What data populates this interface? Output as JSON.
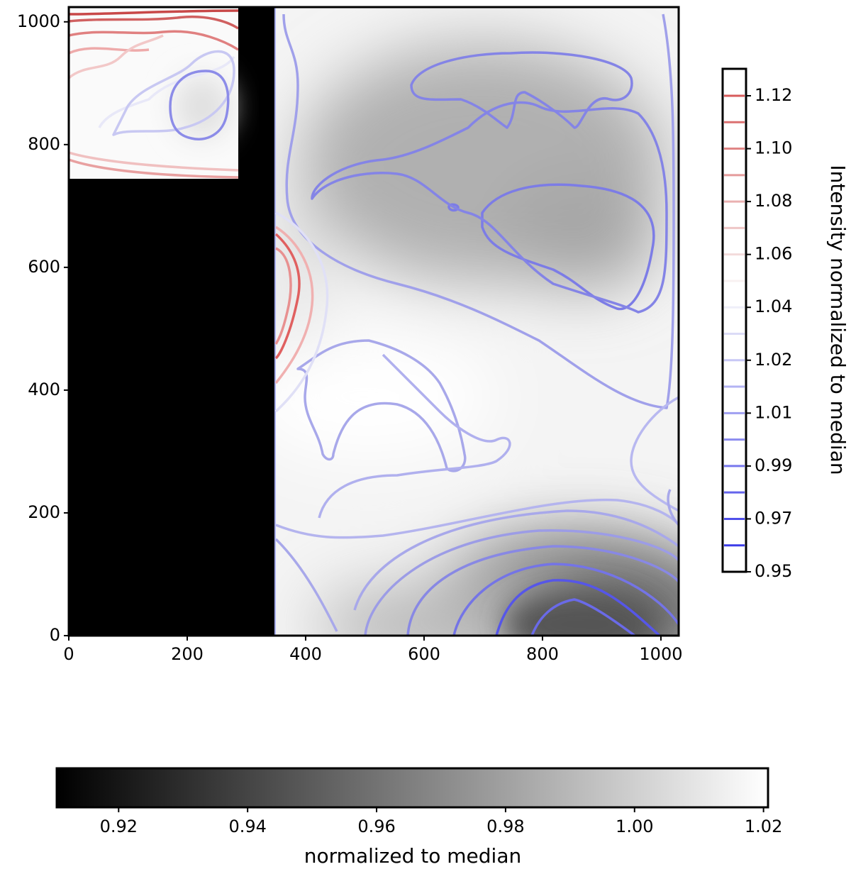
{
  "chart_data": {
    "type": "contour",
    "xlim": [
      0,
      1030
    ],
    "ylim": [
      0,
      1024
    ],
    "xticks": [
      0,
      200,
      400,
      600,
      800,
      1000
    ],
    "yticks": [
      0,
      200,
      400,
      600,
      800,
      1000
    ],
    "colorbar_right": {
      "label": "Intensity normalized to median",
      "ticks": [
        {
          "value": 0.95,
          "label": "0.95"
        },
        {
          "value": 0.97,
          "label": "0.97"
        },
        {
          "value": 0.99,
          "label": "0.99"
        },
        {
          "value": 1.01,
          "label": "1.01"
        },
        {
          "value": 1.02,
          "label": "1.02"
        },
        {
          "value": 1.04,
          "label": "1.04"
        },
        {
          "value": 1.06,
          "label": "1.06"
        },
        {
          "value": 1.08,
          "label": "1.08"
        },
        {
          "value": 1.1,
          "label": "1.10"
        },
        {
          "value": 1.12,
          "label": "1.12"
        }
      ]
    },
    "colorbar_bottom": {
      "label": "normalized to median",
      "lim": [
        0.9104,
        1.0207
      ],
      "ticks": [
        0.92,
        0.94,
        0.96,
        0.98,
        {
          "value": 1.0,
          "label": "1.00"
        },
        1.02
      ]
    }
  }
}
